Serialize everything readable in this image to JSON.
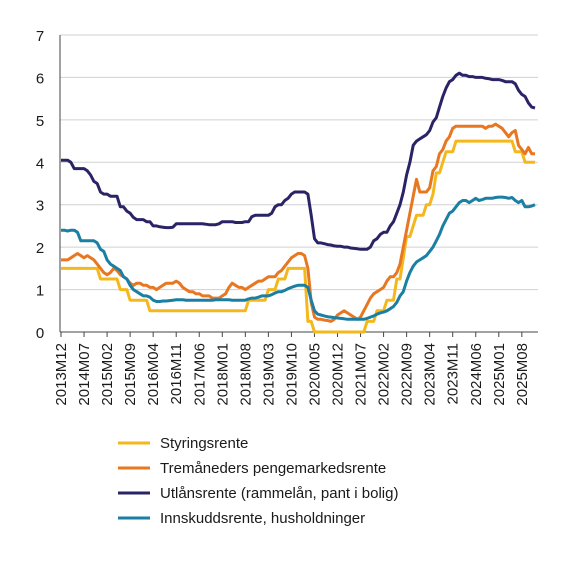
{
  "chart_data": {
    "type": "line",
    "categories": [
      "2013M12",
      null,
      null,
      null,
      null,
      null,
      null,
      "2014M07",
      null,
      null,
      null,
      null,
      null,
      null,
      "2015M02",
      null,
      null,
      null,
      null,
      null,
      null,
      "2015M09",
      null,
      null,
      null,
      null,
      null,
      null,
      "2016M04",
      null,
      null,
      null,
      null,
      null,
      null,
      "2016M11",
      null,
      null,
      null,
      null,
      null,
      null,
      "2017M06",
      null,
      null,
      null,
      null,
      null,
      null,
      "2018M01",
      null,
      null,
      null,
      null,
      null,
      null,
      "2018M08",
      null,
      null,
      null,
      null,
      null,
      null,
      "2019M03",
      null,
      null,
      null,
      null,
      null,
      null,
      "2019M10",
      null,
      null,
      null,
      null,
      null,
      null,
      "2020M05",
      null,
      null,
      null,
      null,
      null,
      null,
      "2020M12",
      null,
      null,
      null,
      null,
      null,
      null,
      "2021M07",
      null,
      null,
      null,
      null,
      null,
      null,
      "2022M02",
      null,
      null,
      null,
      null,
      null,
      null,
      "2022M09",
      null,
      null,
      null,
      null,
      null,
      null,
      "2023M04",
      null,
      null,
      null,
      null,
      null,
      null,
      "2023M11",
      null,
      null,
      null,
      null,
      null,
      null,
      "2024M06",
      null,
      null,
      null,
      null,
      null,
      null,
      "2025M01",
      null,
      null,
      null,
      null,
      null,
      null,
      "2025M08",
      null,
      null,
      null,
      null
    ],
    "ylim": [
      0,
      7
    ],
    "yticks": [
      0,
      1,
      2,
      3,
      4,
      5,
      6,
      7
    ],
    "grid": true,
    "series": [
      {
        "name": "Styringsrente",
        "color": "#f5b81c",
        "values": [
          1.5,
          1.5,
          1.5,
          1.5,
          1.5,
          1.5,
          1.5,
          1.5,
          1.5,
          1.5,
          1.5,
          1.5,
          1.25,
          1.25,
          1.25,
          1.25,
          1.25,
          1.25,
          1.0,
          1.0,
          1.0,
          0.75,
          0.75,
          0.75,
          0.75,
          0.75,
          0.75,
          0.5,
          0.5,
          0.5,
          0.5,
          0.5,
          0.5,
          0.5,
          0.5,
          0.5,
          0.5,
          0.5,
          0.5,
          0.5,
          0.5,
          0.5,
          0.5,
          0.5,
          0.5,
          0.5,
          0.5,
          0.5,
          0.5,
          0.5,
          0.5,
          0.5,
          0.5,
          0.5,
          0.5,
          0.5,
          0.5,
          0.75,
          0.75,
          0.75,
          0.75,
          0.75,
          0.75,
          1.0,
          1.0,
          1.0,
          1.25,
          1.25,
          1.25,
          1.5,
          1.5,
          1.5,
          1.5,
          1.5,
          1.5,
          0.25,
          0.25,
          0,
          0,
          0,
          0,
          0,
          0,
          0,
          0,
          0,
          0,
          0,
          0,
          0,
          0,
          0,
          0,
          0.25,
          0.25,
          0.25,
          0.5,
          0.5,
          0.5,
          0.75,
          0.75,
          0.75,
          1.25,
          1.25,
          1.75,
          2.25,
          2.25,
          2.5,
          2.75,
          2.75,
          2.75,
          3.0,
          3.0,
          3.25,
          3.75,
          3.75,
          4.0,
          4.25,
          4.25,
          4.25,
          4.5,
          4.5,
          4.5,
          4.5,
          4.5,
          4.5,
          4.5,
          4.5,
          4.5,
          4.5,
          4.5,
          4.5,
          4.5,
          4.5,
          4.5,
          4.5,
          4.5,
          4.5,
          4.25,
          4.25,
          4.25,
          4.0,
          4.0,
          4.0,
          4.0
        ]
      },
      {
        "name": "Tremåneders pengemarkedsrente",
        "color": "#e87722",
        "values": [
          1.7,
          1.7,
          1.7,
          1.75,
          1.8,
          1.85,
          1.8,
          1.75,
          1.8,
          1.75,
          1.7,
          1.6,
          1.5,
          1.4,
          1.35,
          1.4,
          1.5,
          1.45,
          1.35,
          1.3,
          1.25,
          1.15,
          1.1,
          1.15,
          1.15,
          1.1,
          1.1,
          1.05,
          1.05,
          1.0,
          1.05,
          1.1,
          1.15,
          1.15,
          1.15,
          1.2,
          1.15,
          1.05,
          1.0,
          0.95,
          0.95,
          0.9,
          0.9,
          0.85,
          0.85,
          0.85,
          0.8,
          0.8,
          0.8,
          0.85,
          0.9,
          1.05,
          1.15,
          1.1,
          1.05,
          1.05,
          1.0,
          1.05,
          1.1,
          1.15,
          1.2,
          1.2,
          1.25,
          1.3,
          1.3,
          1.3,
          1.4,
          1.45,
          1.55,
          1.65,
          1.75,
          1.8,
          1.85,
          1.85,
          1.8,
          1.5,
          0.7,
          0.35,
          0.3,
          0.3,
          0.28,
          0.27,
          0.25,
          0.3,
          0.4,
          0.45,
          0.5,
          0.45,
          0.4,
          0.35,
          0.3,
          0.35,
          0.5,
          0.65,
          0.8,
          0.9,
          0.95,
          1.0,
          1.05,
          1.2,
          1.3,
          1.3,
          1.4,
          1.6,
          2.0,
          2.4,
          2.8,
          3.2,
          3.6,
          3.3,
          3.3,
          3.3,
          3.4,
          3.8,
          3.9,
          4.2,
          4.3,
          4.5,
          4.6,
          4.8,
          4.85,
          4.85,
          4.85,
          4.85,
          4.85,
          4.85,
          4.85,
          4.85,
          4.85,
          4.8,
          4.85,
          4.85,
          4.9,
          4.85,
          4.8,
          4.7,
          4.6,
          4.7,
          4.75,
          4.4,
          4.3,
          4.2,
          4.35,
          4.2,
          4.2
        ]
      },
      {
        "name": "Utlånsrente (rammelån, pant i bolig)",
        "color": "#2a2466",
        "values": [
          4.05,
          4.05,
          4.05,
          4.0,
          3.85,
          3.85,
          3.85,
          3.85,
          3.8,
          3.7,
          3.55,
          3.5,
          3.3,
          3.25,
          3.25,
          3.2,
          3.2,
          3.2,
          2.95,
          2.95,
          2.85,
          2.8,
          2.7,
          2.65,
          2.65,
          2.65,
          2.6,
          2.6,
          2.5,
          2.5,
          2.48,
          2.47,
          2.46,
          2.46,
          2.47,
          2.55,
          2.55,
          2.55,
          2.55,
          2.55,
          2.55,
          2.55,
          2.55,
          2.55,
          2.54,
          2.53,
          2.53,
          2.53,
          2.55,
          2.6,
          2.6,
          2.6,
          2.6,
          2.58,
          2.58,
          2.58,
          2.6,
          2.6,
          2.72,
          2.75,
          2.75,
          2.75,
          2.75,
          2.75,
          2.8,
          2.95,
          3.0,
          3.0,
          3.1,
          3.15,
          3.25,
          3.3,
          3.3,
          3.3,
          3.3,
          3.25,
          2.75,
          2.2,
          2.1,
          2.1,
          2.08,
          2.06,
          2.05,
          2.03,
          2.02,
          2.02,
          2.0,
          2.0,
          1.98,
          1.97,
          1.96,
          1.95,
          1.95,
          1.95,
          2.0,
          2.15,
          2.2,
          2.3,
          2.35,
          2.35,
          2.5,
          2.6,
          2.8,
          3.0,
          3.3,
          3.7,
          4.0,
          4.4,
          4.5,
          4.55,
          4.6,
          4.65,
          4.75,
          4.95,
          5.05,
          5.3,
          5.55,
          5.75,
          5.9,
          5.95,
          6.05,
          6.1,
          6.05,
          6.05,
          6.02,
          6.02,
          6.0,
          6.0,
          6.0,
          5.98,
          5.97,
          5.95,
          5.95,
          5.95,
          5.93,
          5.9,
          5.9,
          5.9,
          5.85,
          5.7,
          5.6,
          5.55,
          5.4,
          5.3,
          5.28
        ]
      },
      {
        "name": "Innskuddsrente, husholdninger",
        "color": "#1b7fa3",
        "values": [
          2.4,
          2.4,
          2.38,
          2.4,
          2.4,
          2.35,
          2.15,
          2.15,
          2.15,
          2.15,
          2.15,
          2.1,
          1.95,
          1.9,
          1.7,
          1.6,
          1.55,
          1.5,
          1.45,
          1.3,
          1.25,
          1.1,
          1.0,
          0.95,
          0.9,
          0.85,
          0.85,
          0.82,
          0.75,
          0.72,
          0.72,
          0.73,
          0.73,
          0.74,
          0.75,
          0.76,
          0.76,
          0.76,
          0.75,
          0.75,
          0.75,
          0.75,
          0.75,
          0.75,
          0.75,
          0.75,
          0.75,
          0.76,
          0.76,
          0.76,
          0.76,
          0.76,
          0.75,
          0.75,
          0.75,
          0.75,
          0.75,
          0.78,
          0.8,
          0.8,
          0.82,
          0.85,
          0.85,
          0.85,
          0.88,
          0.92,
          0.95,
          0.95,
          0.98,
          1.02,
          1.05,
          1.08,
          1.1,
          1.1,
          1.1,
          1.05,
          0.75,
          0.5,
          0.42,
          0.4,
          0.38,
          0.36,
          0.35,
          0.34,
          0.33,
          0.32,
          0.31,
          0.3,
          0.3,
          0.3,
          0.3,
          0.3,
          0.3,
          0.32,
          0.35,
          0.38,
          0.42,
          0.45,
          0.47,
          0.5,
          0.55,
          0.6,
          0.7,
          0.85,
          0.95,
          1.2,
          1.4,
          1.55,
          1.65,
          1.7,
          1.75,
          1.8,
          1.9,
          2.0,
          2.15,
          2.3,
          2.5,
          2.65,
          2.8,
          2.85,
          2.95,
          3.05,
          3.1,
          3.1,
          3.05,
          3.1,
          3.15,
          3.1,
          3.12,
          3.15,
          3.15,
          3.15,
          3.17,
          3.18,
          3.18,
          3.17,
          3.15,
          3.17,
          3.1,
          3.05,
          3.1,
          2.95,
          2.95,
          2.97,
          3.0
        ]
      }
    ]
  }
}
